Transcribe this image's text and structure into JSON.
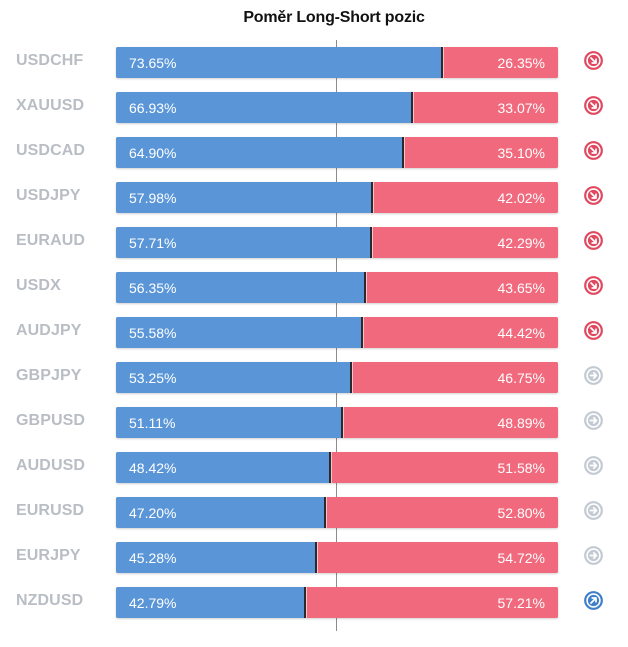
{
  "chart_data": {
    "type": "bar",
    "title": "Poměr Long-Short pozic",
    "xlabel": "",
    "ylabel": "",
    "xlim": [
      0,
      100
    ],
    "categories": [
      "USDCHF",
      "XAUUSD",
      "USDCAD",
      "USDJPY",
      "EURAUD",
      "USDX",
      "AUDJPY",
      "GBPJPY",
      "GBPUSD",
      "AUDUSD",
      "EURUSD",
      "EURJPY",
      "NZDUSD"
    ],
    "series": [
      {
        "values": [
          73.65,
          66.93,
          64.9,
          57.98,
          57.71,
          56.35,
          55.58,
          53.25,
          51.11,
          48.42,
          47.2,
          45.28,
          42.79
        ],
        "labels": [
          "73.65%",
          "66.93%",
          "64.90%",
          "57.98%",
          "57.71%",
          "56.35%",
          "55.58%",
          "53.25%",
          "51.11%",
          "48.42%",
          "47.20%",
          "45.28%",
          "42.79%"
        ],
        "color": "#5a96d7"
      },
      {
        "values": [
          26.35,
          33.07,
          35.1,
          42.02,
          42.29,
          43.65,
          44.42,
          46.75,
          48.89,
          51.58,
          52.8,
          54.72,
          57.21
        ],
        "labels": [
          "26.35%",
          "33.07%",
          "35.10%",
          "42.02%",
          "42.29%",
          "43.65%",
          "44.42%",
          "46.75%",
          "48.89%",
          "51.58%",
          "52.80%",
          "54.72%",
          "57.21%"
        ],
        "color": "#f0697d"
      }
    ],
    "signals": [
      "down-right-arrow-icon",
      "down-right-arrow-icon",
      "down-right-arrow-icon",
      "down-right-arrow-icon",
      "down-right-arrow-icon",
      "down-right-arrow-icon",
      "down-right-arrow-icon",
      "right-arrow-icon",
      "right-arrow-icon",
      "right-arrow-icon",
      "right-arrow-icon",
      "right-arrow-icon",
      "up-right-arrow-icon"
    ],
    "signal_colors": {
      "down-right-arrow-icon": "#e0485f",
      "right-arrow-icon": "#c3cad3",
      "up-right-arrow-icon": "#3f7fca"
    },
    "reference_line": 50,
    "grid": false,
    "legend": "none"
  }
}
